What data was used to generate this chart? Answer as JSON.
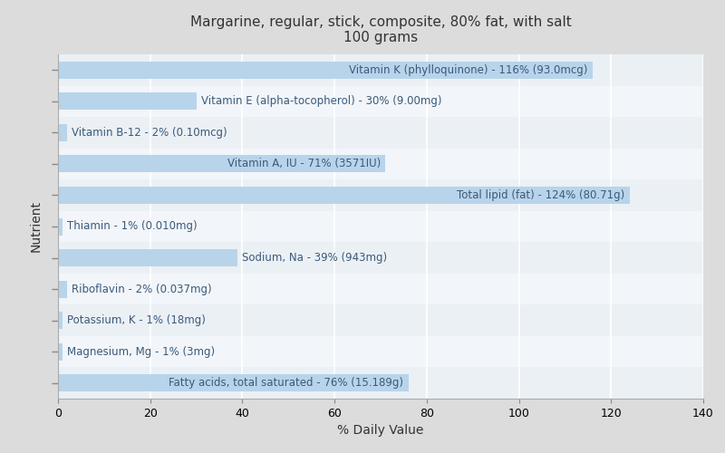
{
  "title_line1": "Margarine, regular, stick, composite, 80% fat, with salt",
  "title_line2": "100 grams",
  "xlabel": "% Daily Value",
  "ylabel": "Nutrient",
  "background_color": "#dcdcdc",
  "plot_bg_color": "#f0f4f8",
  "bar_color": "#b8d4ea",
  "label_color": "#3a5a7a",
  "nutrients": [
    "Fatty acids, total saturated - 76% (15.189g)",
    "Magnesium, Mg - 1% (3mg)",
    "Potassium, K - 1% (18mg)",
    "Riboflavin - 2% (0.037mg)",
    "Sodium, Na - 39% (943mg)",
    "Thiamin - 1% (0.010mg)",
    "Total lipid (fat) - 124% (80.71g)",
    "Vitamin A, IU - 71% (3571IU)",
    "Vitamin B-12 - 2% (0.10mcg)",
    "Vitamin E (alpha-tocopherol) - 30% (9.00mg)",
    "Vitamin K (phylloquinone) - 116% (93.0mcg)"
  ],
  "values": [
    76,
    1,
    1,
    2,
    39,
    1,
    124,
    71,
    2,
    30,
    116
  ],
  "label_inside_threshold": 40,
  "xlim": [
    0,
    140
  ],
  "xticks": [
    0,
    20,
    40,
    60,
    80,
    100,
    120,
    140
  ],
  "title_fontsize": 11,
  "label_fontsize": 8.5,
  "axis_label_fontsize": 10,
  "bar_height": 0.55
}
